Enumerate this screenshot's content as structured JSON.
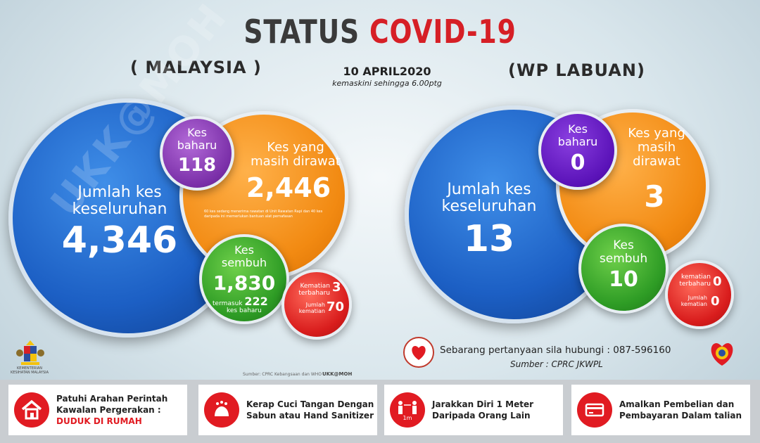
{
  "header": {
    "title_part1": "STATUS",
    "title_part2": "COVID-19",
    "left_region": "( MALAYSIA )",
    "right_region": "(WP LABUAN)",
    "date": "10 APRIL2020",
    "updated": "kemaskini sehingga 6.00ptg"
  },
  "malaysia": {
    "total_label_line1": "Jumlah kes",
    "total_label_line2": "keseluruhan",
    "total_value": "4,346",
    "new_label_line1": "Kes",
    "new_label_line2": "baharu",
    "new_value": "118",
    "ongoing_label_line1": "Kes yang",
    "ongoing_label_line2": "masih dirawat",
    "ongoing_value": "2,446",
    "ongoing_note": "60 kes sedang menerima rawatan di Unit Rawatan Rapi dan 40 kes daripada ini memerlukan bantuan alat pernafasan",
    "recovered_label_line1": "Kes",
    "recovered_label_line2": "sembuh",
    "recovered_value": "1,830",
    "recovered_note1": "termasuk",
    "recovered_note_value": "222",
    "recovered_note2": "kes baharu",
    "death_new_label_line1": "Kematian",
    "death_new_label_line2": "terbaharu",
    "death_new_value": "3",
    "death_total_label_line1": "Jumlah",
    "death_total_label_line2": "kematian",
    "death_total_value": "70"
  },
  "labuan": {
    "total_label_line1": "Jumlah kes",
    "total_label_line2": "keseluruhan",
    "total_value": "13",
    "new_label_line1": "Kes",
    "new_label_line2": "baharu",
    "new_value": "0",
    "ongoing_label_line1": "Kes yang",
    "ongoing_label_line2": "masih",
    "ongoing_label_line3": "dirawat",
    "ongoing_value": "3",
    "recovered_label_line1": "Kes",
    "recovered_label_line2": "sembuh",
    "recovered_value": "10",
    "death_new_label_line1": "kematian",
    "death_new_label_line2": "terbaharu",
    "death_new_value": "0",
    "death_total_label_line1": "Jumlah",
    "death_total_label_line2": "kematian",
    "death_total_value": "0"
  },
  "contact": {
    "text": "Sebarang pertanyaan sila hubungi : 087-596160",
    "source": "Sumber : CPRC JKWPL"
  },
  "credits": {
    "small_source": "Sumber: CPRC Kebangsaan dan WHO",
    "ukk": "UKK@MOH",
    "ministry": "KEMENTERIAN KESIHATAN MALAYSIA",
    "watermark": "UKK@MOH"
  },
  "footer": {
    "items": [
      {
        "line1": "Patuhi Arahan Perintah",
        "line2": "Kawalan Pergerakan :",
        "line3": "DUDUK DI RUMAH",
        "icon": "house-icon"
      },
      {
        "line1": "Kerap Cuci Tangan Dengan",
        "line2": "Sabun atau Hand Sanitizer",
        "icon": "handwash-icon"
      },
      {
        "line1": "Jarakkan Diri 1 Meter",
        "line2": "Daripada Orang Lain",
        "icon": "distance-icon"
      },
      {
        "line1": "Amalkan Pembelian dan",
        "line2": "Pembayaran Dalam talian",
        "icon": "card-payment-icon"
      }
    ]
  },
  "colors": {
    "title_dark": "#3a3a3a",
    "title_red": "#d61f26",
    "blue": "#1c5fc4",
    "orange": "#f28a12",
    "purple": "#7a2fa8",
    "green": "#2e9c25",
    "red": "#d91d1d"
  }
}
